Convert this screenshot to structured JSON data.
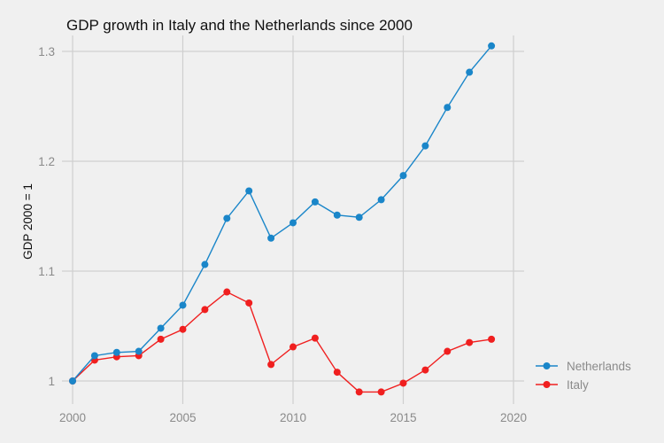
{
  "chart_data": {
    "type": "line",
    "title": "GDP growth in Italy and the Netherlands since 2000",
    "xlabel": "",
    "ylabel": "GDP 2000 = 1",
    "x": [
      2000,
      2001,
      2002,
      2003,
      2004,
      2005,
      2006,
      2007,
      2008,
      2009,
      2010,
      2011,
      2012,
      2013,
      2014,
      2015,
      2016,
      2017,
      2018,
      2019
    ],
    "xlim": [
      2000,
      2020
    ],
    "ylim": [
      0.98,
      1.315
    ],
    "xticks": [
      2000,
      2005,
      2010,
      2015,
      2020
    ],
    "xtick_labels": [
      "2000",
      "2005",
      "2010",
      "2015",
      "2020"
    ],
    "yticks": [
      1.0,
      1.1,
      1.2,
      1.3
    ],
    "ytick_labels": [
      "1",
      "1.1",
      "1.2",
      "1.3"
    ],
    "grid": true,
    "legend_position": "right",
    "series": [
      {
        "name": "Netherlands",
        "color": "#1a86c9",
        "values": [
          1.0,
          1.023,
          1.026,
          1.027,
          1.048,
          1.069,
          1.106,
          1.148,
          1.173,
          1.13,
          1.144,
          1.163,
          1.151,
          1.149,
          1.165,
          1.187,
          1.214,
          1.249,
          1.281,
          1.305
        ]
      },
      {
        "name": "Italy",
        "color": "#f01f1f",
        "values": [
          1.0,
          1.019,
          1.022,
          1.023,
          1.038,
          1.047,
          1.065,
          1.081,
          1.071,
          1.015,
          1.031,
          1.039,
          1.008,
          0.99,
          0.99,
          0.998,
          1.01,
          1.027,
          1.035,
          1.038
        ]
      }
    ]
  }
}
